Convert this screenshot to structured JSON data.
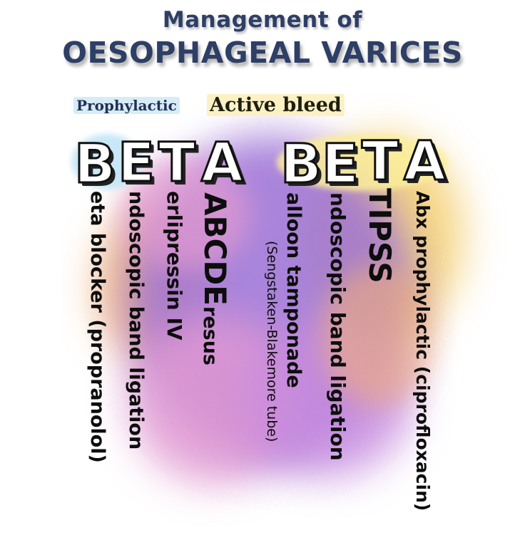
{
  "title": {
    "line1": "Management of",
    "line2": "OESOPHAGEAL VARICES"
  },
  "sections": {
    "prophylactic": "Prophylactic",
    "active_bleed": "Active bleed"
  },
  "mnemonic_prophylactic": [
    "B",
    "E",
    "T",
    "A"
  ],
  "mnemonic_active": [
    "B",
    "E",
    "T",
    "A"
  ],
  "items": [
    {
      "text": "eta blocker (propranolol)"
    },
    {
      "text": "ndoscopic band ligation"
    },
    {
      "text": "erlipressin IV"
    },
    {
      "text_big": "ABCDE",
      "text_small": "resus"
    },
    {
      "text": "alloon tamponade",
      "subtext": "(Sengstaken-Blakemore tube)"
    },
    {
      "text": "ndoscopic band ligation"
    },
    {
      "text": "TIPSS"
    },
    {
      "text": "Abx prophylactic (ciprofloxacin)"
    }
  ],
  "colors": {
    "title": "#2e3f66",
    "prophylactic_highlight": "#d6ecf7",
    "active_highlight": "#fbf1c4",
    "wash_purple": "#9b6fd6",
    "wash_pink": "#e49ad2",
    "wash_orange": "#f0a866",
    "wash_yellow": "#f4cf70"
  }
}
